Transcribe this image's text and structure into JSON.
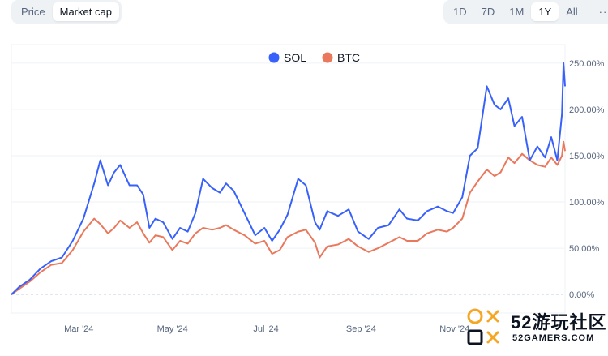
{
  "toolbar": {
    "left_options": [
      {
        "label": "Price",
        "active": false
      },
      {
        "label": "Market cap",
        "active": true
      }
    ],
    "range_options": [
      {
        "label": "1D",
        "active": false
      },
      {
        "label": "7D",
        "active": false
      },
      {
        "label": "1M",
        "active": false
      },
      {
        "label": "1Y",
        "active": true
      },
      {
        "label": "All",
        "active": false
      }
    ],
    "more_label": "···"
  },
  "chart_data": {
    "type": "line",
    "title": "",
    "xlabel": "",
    "ylabel": "",
    "y_unit": "%",
    "ylim": [
      -20,
      270
    ],
    "y_ticks": [
      "250.00%",
      "200.00%",
      "150.00%",
      "100.00%",
      "50.00%",
      "0.00%"
    ],
    "y_tick_values": [
      250,
      200,
      150,
      100,
      50,
      0
    ],
    "x_range": [
      "2024-01-17",
      "2025-01-12"
    ],
    "x_ticks": [
      {
        "label": "Mar '24",
        "date": "2024-03-01"
      },
      {
        "label": "May '24",
        "date": "2024-05-01"
      },
      {
        "label": "Jul '24",
        "date": "2024-07-01"
      },
      {
        "label": "Sep '24",
        "date": "2024-09-01"
      },
      {
        "label": "Nov '24",
        "date": "2024-11-01"
      }
    ],
    "grid": true,
    "legend_placement": "top-center",
    "series": [
      {
        "name": "SOL",
        "color": "#3861fb",
        "points": [
          [
            "2024-01-17",
            0
          ],
          [
            "2024-01-22",
            8
          ],
          [
            "2024-01-29",
            16
          ],
          [
            "2024-02-05",
            28
          ],
          [
            "2024-02-12",
            36
          ],
          [
            "2024-02-19",
            40
          ],
          [
            "2024-02-26",
            58
          ],
          [
            "2024-03-04",
            82
          ],
          [
            "2024-03-11",
            120
          ],
          [
            "2024-03-15",
            145
          ],
          [
            "2024-03-20",
            118
          ],
          [
            "2024-03-24",
            132
          ],
          [
            "2024-03-28",
            140
          ],
          [
            "2024-04-03",
            118
          ],
          [
            "2024-04-08",
            118
          ],
          [
            "2024-04-12",
            108
          ],
          [
            "2024-04-16",
            72
          ],
          [
            "2024-04-20",
            82
          ],
          [
            "2024-04-25",
            78
          ],
          [
            "2024-05-01",
            60
          ],
          [
            "2024-05-06",
            72
          ],
          [
            "2024-05-11",
            68
          ],
          [
            "2024-05-16",
            88
          ],
          [
            "2024-05-21",
            125
          ],
          [
            "2024-05-27",
            115
          ],
          [
            "2024-06-01",
            110
          ],
          [
            "2024-06-05",
            120
          ],
          [
            "2024-06-10",
            112
          ],
          [
            "2024-06-17",
            88
          ],
          [
            "2024-06-24",
            64
          ],
          [
            "2024-06-30",
            72
          ],
          [
            "2024-07-05",
            58
          ],
          [
            "2024-07-10",
            70
          ],
          [
            "2024-07-15",
            86
          ],
          [
            "2024-07-22",
            125
          ],
          [
            "2024-07-27",
            118
          ],
          [
            "2024-08-02",
            78
          ],
          [
            "2024-08-05",
            70
          ],
          [
            "2024-08-10",
            90
          ],
          [
            "2024-08-17",
            85
          ],
          [
            "2024-08-24",
            92
          ],
          [
            "2024-08-30",
            68
          ],
          [
            "2024-09-06",
            60
          ],
          [
            "2024-09-12",
            72
          ],
          [
            "2024-09-19",
            75
          ],
          [
            "2024-09-26",
            92
          ],
          [
            "2024-10-01",
            82
          ],
          [
            "2024-10-08",
            80
          ],
          [
            "2024-10-14",
            90
          ],
          [
            "2024-10-21",
            95
          ],
          [
            "2024-10-27",
            90
          ],
          [
            "2024-10-31",
            88
          ],
          [
            "2024-11-06",
            105
          ],
          [
            "2024-11-11",
            150
          ],
          [
            "2024-11-16",
            158
          ],
          [
            "2024-11-22",
            225
          ],
          [
            "2024-11-27",
            205
          ],
          [
            "2024-12-01",
            200
          ],
          [
            "2024-12-06",
            212
          ],
          [
            "2024-12-10",
            182
          ],
          [
            "2024-12-15",
            192
          ],
          [
            "2024-12-20",
            145
          ],
          [
            "2024-12-25",
            160
          ],
          [
            "2024-12-30",
            148
          ],
          [
            "2025-01-03",
            170
          ],
          [
            "2025-01-07",
            145
          ],
          [
            "2025-01-10",
            195
          ],
          [
            "2025-01-11",
            250
          ],
          [
            "2025-01-12",
            225
          ]
        ]
      },
      {
        "name": "BTC",
        "color": "#ea785c",
        "points": [
          [
            "2024-01-17",
            0
          ],
          [
            "2024-01-22",
            6
          ],
          [
            "2024-01-29",
            14
          ],
          [
            "2024-02-05",
            24
          ],
          [
            "2024-02-12",
            32
          ],
          [
            "2024-02-19",
            34
          ],
          [
            "2024-02-26",
            48
          ],
          [
            "2024-03-04",
            68
          ],
          [
            "2024-03-11",
            82
          ],
          [
            "2024-03-15",
            76
          ],
          [
            "2024-03-20",
            66
          ],
          [
            "2024-03-24",
            72
          ],
          [
            "2024-03-28",
            80
          ],
          [
            "2024-04-03",
            72
          ],
          [
            "2024-04-08",
            78
          ],
          [
            "2024-04-12",
            66
          ],
          [
            "2024-04-16",
            56
          ],
          [
            "2024-04-20",
            64
          ],
          [
            "2024-04-25",
            62
          ],
          [
            "2024-05-01",
            48
          ],
          [
            "2024-05-06",
            58
          ],
          [
            "2024-05-11",
            55
          ],
          [
            "2024-05-16",
            66
          ],
          [
            "2024-05-21",
            72
          ],
          [
            "2024-05-27",
            70
          ],
          [
            "2024-06-01",
            72
          ],
          [
            "2024-06-05",
            75
          ],
          [
            "2024-06-10",
            70
          ],
          [
            "2024-06-17",
            64
          ],
          [
            "2024-06-24",
            55
          ],
          [
            "2024-06-30",
            58
          ],
          [
            "2024-07-05",
            44
          ],
          [
            "2024-07-10",
            48
          ],
          [
            "2024-07-15",
            62
          ],
          [
            "2024-07-22",
            68
          ],
          [
            "2024-07-27",
            70
          ],
          [
            "2024-08-02",
            56
          ],
          [
            "2024-08-05",
            40
          ],
          [
            "2024-08-10",
            52
          ],
          [
            "2024-08-17",
            54
          ],
          [
            "2024-08-24",
            60
          ],
          [
            "2024-08-30",
            52
          ],
          [
            "2024-09-06",
            46
          ],
          [
            "2024-09-12",
            50
          ],
          [
            "2024-09-19",
            56
          ],
          [
            "2024-09-26",
            62
          ],
          [
            "2024-10-01",
            58
          ],
          [
            "2024-10-08",
            58
          ],
          [
            "2024-10-14",
            66
          ],
          [
            "2024-10-21",
            70
          ],
          [
            "2024-10-27",
            68
          ],
          [
            "2024-10-31",
            72
          ],
          [
            "2024-11-06",
            82
          ],
          [
            "2024-11-11",
            110
          ],
          [
            "2024-11-16",
            122
          ],
          [
            "2024-11-22",
            135
          ],
          [
            "2024-11-27",
            128
          ],
          [
            "2024-12-01",
            132
          ],
          [
            "2024-12-06",
            148
          ],
          [
            "2024-12-10",
            142
          ],
          [
            "2024-12-15",
            152
          ],
          [
            "2024-12-20",
            145
          ],
          [
            "2024-12-25",
            140
          ],
          [
            "2024-12-30",
            138
          ],
          [
            "2025-01-03",
            148
          ],
          [
            "2025-01-07",
            140
          ],
          [
            "2025-01-10",
            150
          ],
          [
            "2025-01-11",
            165
          ],
          [
            "2025-01-12",
            155
          ]
        ]
      }
    ]
  },
  "watermark": {
    "big_text": "52游玩社区",
    "small_text": "52GAMERS.COM"
  }
}
